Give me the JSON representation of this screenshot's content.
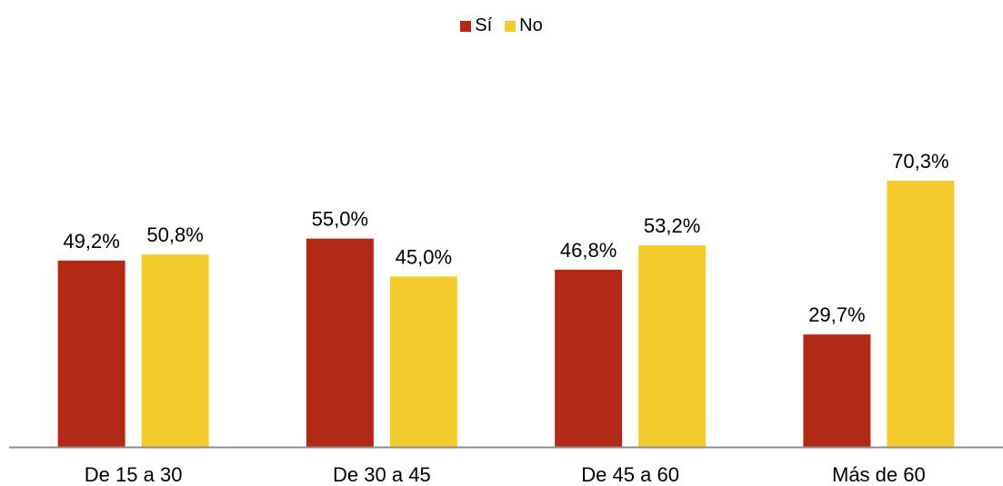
{
  "chart_data": {
    "type": "bar",
    "categories": [
      "De 15 a 30",
      "De 30 a 45",
      "De 45 a 60",
      "Más de 60"
    ],
    "series": [
      {
        "name": "Sí",
        "color": "#B22A16",
        "values": [
          49.2,
          55.0,
          46.8,
          29.7
        ],
        "labels": [
          "49,2%",
          "55,0%",
          "46,8%",
          "29,7%"
        ]
      },
      {
        "name": "No",
        "color": "#F4CB2C",
        "values": [
          50.8,
          45.0,
          53.2,
          70.3
        ],
        "labels": [
          "50,8%",
          "45,0%",
          "53,2%",
          "70,3%"
        ]
      }
    ],
    "ylim": [
      0,
      100
    ],
    "grid": false,
    "legend_position": "top-center",
    "axis_color": "#8C8C8C"
  }
}
